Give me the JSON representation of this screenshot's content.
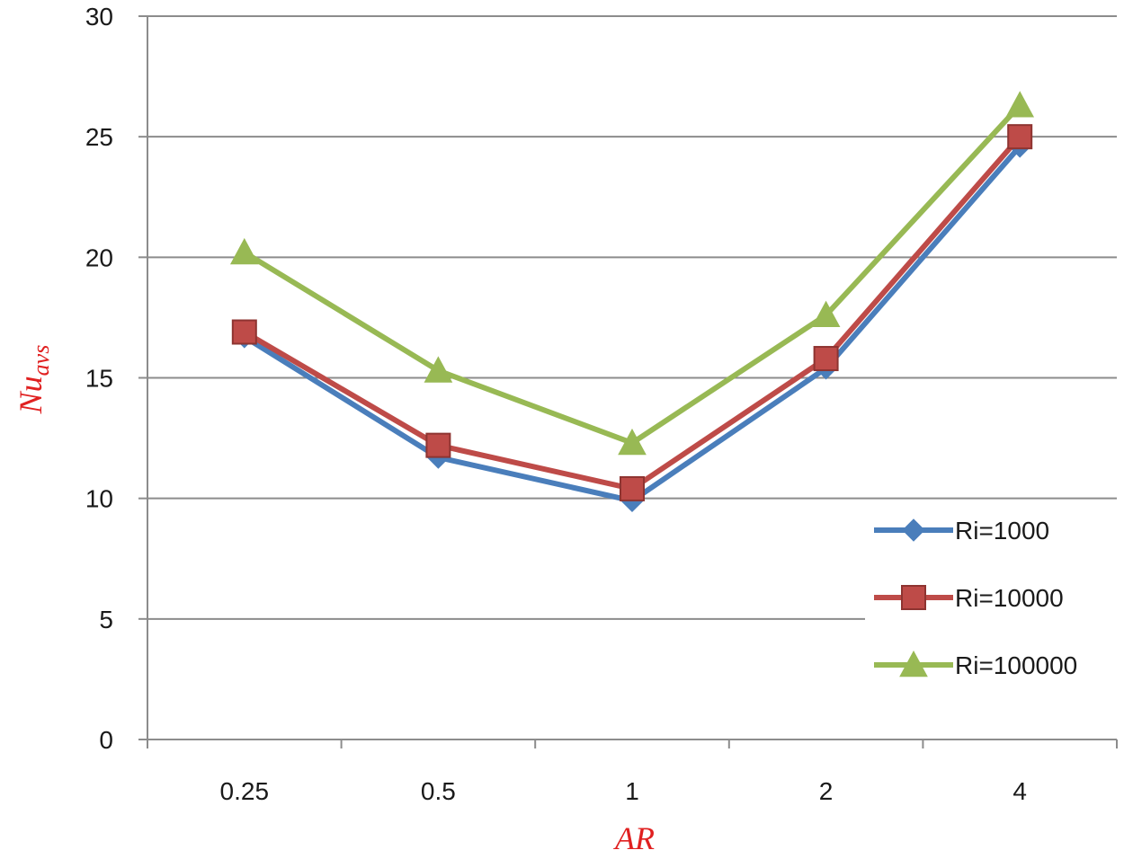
{
  "chart_data": {
    "type": "line",
    "title": "",
    "xlabel": "AR",
    "ylabel": "Nu",
    "ylabel_subscript": "avs",
    "categories": [
      "0.25",
      "0.5",
      "1",
      "2",
      "4"
    ],
    "ylim": [
      0,
      30
    ],
    "yticks": [
      "0",
      "5",
      "10",
      "15",
      "20",
      "25",
      "30"
    ],
    "grid": true,
    "legend_position": "right",
    "series": [
      {
        "name": "Ri=1000",
        "marker": "diamond",
        "color": "#4a7ebb",
        "values": [
          16.7,
          11.7,
          9.9,
          15.4,
          24.6
        ]
      },
      {
        "name": "Ri=10000",
        "marker": "square",
        "color": "#be4b48",
        "values": [
          16.9,
          12.2,
          10.4,
          15.8,
          25.0
        ]
      },
      {
        "name": "Ri=100000",
        "marker": "triangle",
        "color": "#98b954",
        "values": [
          20.2,
          15.3,
          12.3,
          17.6,
          26.3
        ]
      }
    ]
  }
}
